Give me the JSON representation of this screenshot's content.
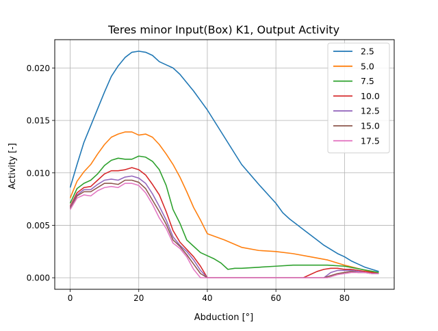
{
  "chart_data": {
    "type": "line",
    "title": "Teres minor Input(Box) K1, Output Activity",
    "xlabel": "Abduction [°]",
    "ylabel": "Activity [-]",
    "xlim": [
      -4.5,
      94.5
    ],
    "ylim": [
      -0.0011,
      0.0227
    ],
    "xticks": [
      0,
      20,
      40,
      60,
      80
    ],
    "xtick_labels": [
      "0",
      "20",
      "40",
      "60",
      "80"
    ],
    "yticks": [
      0.0,
      0.005,
      0.01,
      0.015,
      0.02
    ],
    "ytick_labels": [
      "0.000",
      "0.005",
      "0.010",
      "0.015",
      "0.020"
    ],
    "grid": true,
    "legend_position": "top-right",
    "series": [
      {
        "name": "2.5",
        "color": "#1f77b4",
        "x": [
          0,
          2,
          4,
          6,
          8,
          10,
          12,
          14,
          16,
          18,
          20,
          22,
          24,
          26,
          28,
          30,
          32,
          34,
          36,
          38,
          40,
          45,
          50,
          55,
          60,
          62,
          64,
          66,
          68,
          70,
          72,
          74,
          76,
          78,
          80,
          82,
          84,
          86,
          88,
          90
        ],
        "y": [
          0.0086,
          0.0108,
          0.0129,
          0.0145,
          0.0161,
          0.0177,
          0.0192,
          0.0202,
          0.021,
          0.0215,
          0.0216,
          0.0215,
          0.0212,
          0.0206,
          0.0203,
          0.02,
          0.0194,
          0.0186,
          0.0178,
          0.0169,
          0.016,
          0.0134,
          0.0108,
          0.0089,
          0.0071,
          0.0062,
          0.0056,
          0.0051,
          0.0046,
          0.0041,
          0.0036,
          0.0031,
          0.0027,
          0.0023,
          0.002,
          0.0016,
          0.0013,
          0.001,
          0.0008,
          0.0006
        ]
      },
      {
        "name": "5.0",
        "color": "#ff7f0e",
        "x": [
          0,
          2,
          4,
          6,
          8,
          10,
          12,
          14,
          16,
          18,
          20,
          22,
          24,
          26,
          28,
          30,
          32,
          34,
          36,
          38,
          40,
          45,
          50,
          55,
          60,
          65,
          70,
          75,
          80,
          85,
          90
        ],
        "y": [
          0.0076,
          0.0092,
          0.0101,
          0.0108,
          0.0118,
          0.0127,
          0.0134,
          0.0137,
          0.0139,
          0.0139,
          0.0136,
          0.0137,
          0.0134,
          0.0127,
          0.0118,
          0.0108,
          0.0096,
          0.0082,
          0.0067,
          0.0055,
          0.0042,
          0.0036,
          0.0029,
          0.0026,
          0.0025,
          0.0023,
          0.002,
          0.0017,
          0.0012,
          0.0008,
          0.0004
        ]
      },
      {
        "name": "7.5",
        "color": "#2ca02c",
        "x": [
          0,
          2,
          4,
          6,
          8,
          10,
          12,
          14,
          16,
          18,
          20,
          22,
          24,
          26,
          28,
          30,
          32,
          34,
          36,
          38,
          40,
          42,
          44,
          46,
          48,
          50,
          55,
          60,
          65,
          70,
          75,
          80,
          85,
          90
        ],
        "y": [
          0.0071,
          0.0085,
          0.009,
          0.0093,
          0.0099,
          0.0107,
          0.0112,
          0.0114,
          0.0113,
          0.0113,
          0.0116,
          0.0115,
          0.0111,
          0.0103,
          0.0088,
          0.0065,
          0.0052,
          0.0036,
          0.003,
          0.0024,
          0.0021,
          0.0018,
          0.0014,
          0.0008,
          0.0009,
          0.0009,
          0.001,
          0.0011,
          0.0012,
          0.0012,
          0.0012,
          0.0011,
          0.0008,
          0.0005
        ]
      },
      {
        "name": "10.0",
        "color": "#d62728",
        "x": [
          0,
          2,
          4,
          6,
          8,
          10,
          12,
          14,
          16,
          18,
          20,
          22,
          24,
          26,
          28,
          30,
          32,
          34,
          36,
          38,
          40,
          45,
          50,
          55,
          60,
          65,
          68,
          70,
          72,
          74,
          76,
          78,
          80,
          82,
          84,
          86,
          88,
          90
        ],
        "y": [
          0.0068,
          0.0081,
          0.0086,
          0.0087,
          0.0093,
          0.0099,
          0.0102,
          0.0102,
          0.0103,
          0.0105,
          0.0103,
          0.0098,
          0.0089,
          0.0079,
          0.0063,
          0.0045,
          0.0034,
          0.0027,
          0.002,
          0.0011,
          0.0,
          0.0,
          0.0,
          0.0,
          0.0,
          0.0,
          0.0,
          0.0003,
          0.0006,
          0.0008,
          0.0009,
          0.0009,
          0.0008,
          0.0008,
          0.0007,
          0.0006,
          0.0005,
          0.0004
        ]
      },
      {
        "name": "12.5",
        "color": "#9467bd",
        "x": [
          0,
          2,
          4,
          6,
          8,
          10,
          12,
          14,
          16,
          18,
          20,
          22,
          24,
          26,
          28,
          30,
          32,
          34,
          36,
          38,
          40,
          45,
          50,
          55,
          60,
          65,
          70,
          74,
          76,
          78,
          80,
          82,
          84,
          86,
          88,
          90
        ],
        "y": [
          0.0067,
          0.0079,
          0.0084,
          0.0084,
          0.0089,
          0.0093,
          0.0094,
          0.0093,
          0.0096,
          0.0097,
          0.0095,
          0.009,
          0.008,
          0.0068,
          0.0055,
          0.0039,
          0.0031,
          0.0025,
          0.0017,
          0.0007,
          0.0,
          0.0,
          0.0,
          0.0,
          0.0,
          0.0,
          0.0,
          0.0,
          0.0005,
          0.0007,
          0.0007,
          0.0007,
          0.0006,
          0.0005,
          0.0004,
          0.0004
        ]
      },
      {
        "name": "15.0",
        "color": "#8c564b",
        "x": [
          0,
          2,
          4,
          6,
          8,
          10,
          12,
          14,
          16,
          18,
          20,
          22,
          24,
          26,
          28,
          30,
          32,
          34,
          36,
          38,
          40,
          45,
          50,
          55,
          60,
          65,
          70,
          74,
          76,
          78,
          80,
          82,
          84,
          86,
          88,
          90
        ],
        "y": [
          0.0066,
          0.0078,
          0.0082,
          0.0082,
          0.0086,
          0.009,
          0.009,
          0.0089,
          0.0093,
          0.0093,
          0.0091,
          0.0085,
          0.0074,
          0.0063,
          0.0051,
          0.0036,
          0.003,
          0.0022,
          0.0013,
          0.0004,
          0.0,
          0.0,
          0.0,
          0.0,
          0.0,
          0.0,
          0.0,
          0.0,
          0.0002,
          0.0004,
          0.0005,
          0.0006,
          0.0005,
          0.0005,
          0.0004,
          0.0004
        ]
      },
      {
        "name": "17.5",
        "color": "#e377c2",
        "x": [
          0,
          2,
          4,
          6,
          8,
          10,
          12,
          14,
          16,
          18,
          20,
          22,
          24,
          26,
          28,
          30,
          32,
          34,
          36,
          38,
          40,
          45,
          50,
          55,
          60,
          65,
          70,
          75,
          76,
          78,
          80,
          82,
          84,
          86,
          88,
          90
        ],
        "y": [
          0.0065,
          0.0076,
          0.0079,
          0.0078,
          0.0083,
          0.0086,
          0.0087,
          0.0086,
          0.009,
          0.009,
          0.0088,
          0.0081,
          0.007,
          0.0057,
          0.0047,
          0.0033,
          0.0028,
          0.002,
          0.0008,
          0.0,
          0.0,
          0.0,
          0.0,
          0.0,
          0.0,
          0.0,
          0.0,
          0.0,
          0.0001,
          0.0003,
          0.0004,
          0.0005,
          0.0005,
          0.0005,
          0.0004,
          0.0004
        ]
      }
    ]
  }
}
